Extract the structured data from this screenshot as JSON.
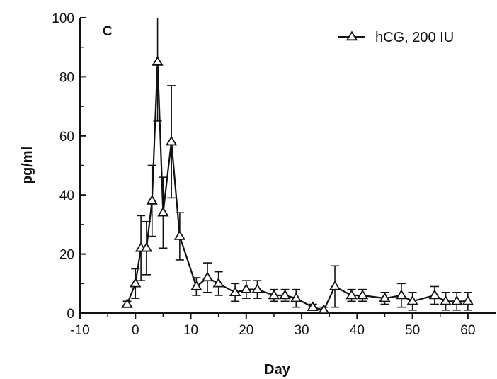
{
  "chart_data": {
    "type": "line",
    "panel_label": "C",
    "xlabel": "Day",
    "ylabel": "pg/ml",
    "xlim": [
      -10,
      65
    ],
    "ylim": [
      0,
      100
    ],
    "x_ticks": [
      -10,
      0,
      10,
      20,
      30,
      40,
      50,
      60
    ],
    "y_ticks": [
      0,
      20,
      40,
      60,
      80,
      100
    ],
    "legend_position": "top-right",
    "series": [
      {
        "name": "hCG, 200 IU",
        "color": "#111111",
        "marker": "triangle-open",
        "points": [
          {
            "x": -1.5,
            "y": 3,
            "err": 1
          },
          {
            "x": 0,
            "y": 10,
            "err": 5
          },
          {
            "x": 1,
            "y": 22,
            "err": 11
          },
          {
            "x": 2,
            "y": 22,
            "err": 9
          },
          {
            "x": 3,
            "y": 38,
            "err": 12
          },
          {
            "x": 4,
            "y": 85,
            "err": 20
          },
          {
            "x": 5,
            "y": 34,
            "err": 12
          },
          {
            "x": 6.5,
            "y": 58,
            "err": 19
          },
          {
            "x": 8,
            "y": 26,
            "err": 8
          },
          {
            "x": 11,
            "y": 9,
            "err": 3
          },
          {
            "x": 13,
            "y": 12,
            "err": 5
          },
          {
            "x": 15,
            "y": 10,
            "err": 4
          },
          {
            "x": 18,
            "y": 7,
            "err": 3
          },
          {
            "x": 20,
            "y": 8,
            "err": 3
          },
          {
            "x": 22,
            "y": 8,
            "err": 3
          },
          {
            "x": 25,
            "y": 6,
            "err": 2
          },
          {
            "x": 27,
            "y": 6,
            "err": 2
          },
          {
            "x": 29,
            "y": 5,
            "err": 3
          },
          {
            "x": 32,
            "y": 2,
            "err": 1
          },
          {
            "x": 34,
            "y": 1,
            "err": 1
          },
          {
            "x": 36,
            "y": 9,
            "err": 7
          },
          {
            "x": 39,
            "y": 6,
            "err": 2
          },
          {
            "x": 41,
            "y": 6,
            "err": 2
          },
          {
            "x": 45,
            "y": 5,
            "err": 2
          },
          {
            "x": 48,
            "y": 6,
            "err": 4
          },
          {
            "x": 50,
            "y": 4,
            "err": 3
          },
          {
            "x": 54,
            "y": 6,
            "err": 3
          },
          {
            "x": 56,
            "y": 4,
            "err": 3
          },
          {
            "x": 58,
            "y": 4,
            "err": 3
          },
          {
            "x": 60,
            "y": 4,
            "err": 3
          }
        ]
      }
    ]
  }
}
